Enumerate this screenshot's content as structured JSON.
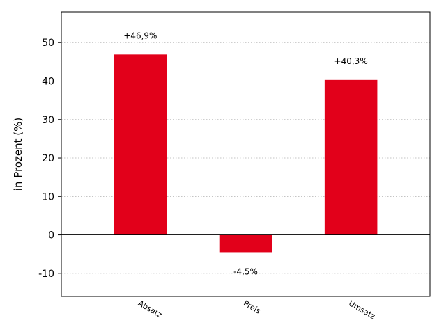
{
  "chart_data": {
    "type": "bar",
    "categories": [
      "Absatz",
      "Preis",
      "Umsatz"
    ],
    "values": [
      46.9,
      -4.5,
      40.3
    ],
    "data_labels": [
      "+46,9%",
      "-4,5%",
      "+40,3%"
    ],
    "title": "",
    "xlabel": "",
    "ylabel": "in Prozent (%)",
    "ylim": [
      -16,
      58
    ],
    "yticks": [
      -10,
      0,
      10,
      20,
      30,
      40,
      50
    ],
    "ytick_labels": [
      "-10",
      "0",
      "10",
      "20",
      "30",
      "40",
      "50"
    ],
    "grid": true,
    "bar_color": "#e2001a"
  }
}
